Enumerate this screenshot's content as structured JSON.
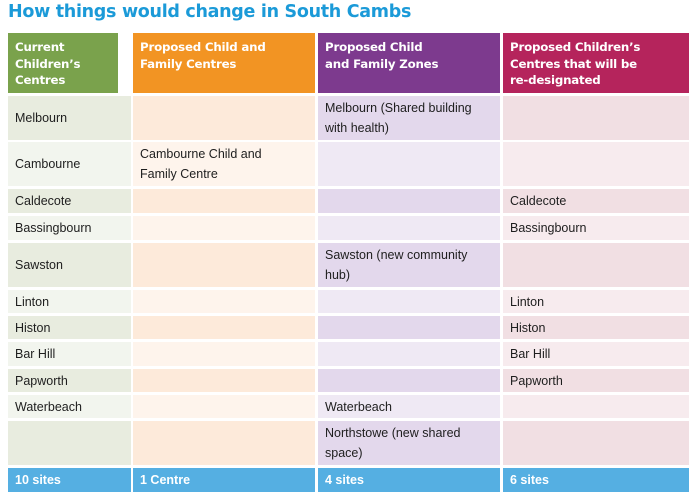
{
  "title": "How things would change in South Cambs",
  "colors": {
    "title": "#1b9ad8",
    "current_header": "#7aa24c",
    "child_family_centres_header": "#f29423",
    "zones_header": "#7d3a8e",
    "redesignated_header": "#b5245c",
    "footer": "#55afe2"
  },
  "table": {
    "headers": [
      "Current Children’s Centres",
      "Proposed Child and Family Centres",
      "Proposed Child and Family Zones",
      "Proposed Children’s Centres that will be re-designated"
    ],
    "rows": [
      [
        "Melbourn",
        "",
        "Melbourn (Shared building with health)",
        ""
      ],
      [
        "Cambourne",
        "Cambourne Child and Family Centre",
        "",
        ""
      ],
      [
        "Caldecote",
        "",
        "",
        "Caldecote"
      ],
      [
        "Bassingbourn",
        "",
        "",
        "Bassingbourn"
      ],
      [
        "Sawston",
        "",
        "Sawston (new community hub)",
        ""
      ],
      [
        "Linton",
        "",
        "",
        "Linton"
      ],
      [
        "Histon",
        "",
        "",
        "Histon"
      ],
      [
        "Bar Hill",
        "",
        "",
        "Bar Hill"
      ],
      [
        "Papworth",
        "",
        "",
        "Papworth"
      ],
      [
        "Waterbeach",
        "",
        "Waterbeach",
        ""
      ],
      [
        "",
        "",
        "Northstowe (new shared space)",
        ""
      ]
    ],
    "totals": [
      "10 sites",
      "1 Centre",
      "4 sites",
      "6 sites"
    ]
  }
}
